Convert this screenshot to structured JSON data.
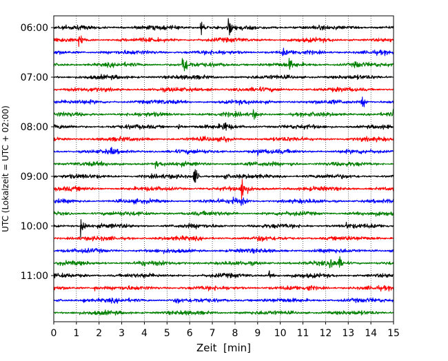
{
  "chart_data": {
    "type": "line",
    "title": "",
    "xlabel": "Zeit  [min]",
    "ylabel": "UTC (Lokalzeit = UTC + 02:00)",
    "xlim": [
      0,
      15
    ],
    "x_ticks": [
      "0",
      "1",
      "2",
      "3",
      "4",
      "5",
      "6",
      "7",
      "8",
      "9",
      "10",
      "11",
      "12",
      "13",
      "14",
      "15"
    ],
    "y_tick_labels": [
      {
        "row": 0,
        "label": "06:00"
      },
      {
        "row": 4,
        "label": "07:00"
      },
      {
        "row": 8,
        "label": "08:00"
      },
      {
        "row": 12,
        "label": "09:00"
      },
      {
        "row": 16,
        "label": "10:00"
      },
      {
        "row": 20,
        "label": "11:00"
      }
    ],
    "row_minutes": 15,
    "grid": "vertical dotted at each minute",
    "colors": [
      "#000000",
      "#ff0000",
      "#0000ff",
      "#008000"
    ],
    "traces": [
      {
        "row": 0,
        "start": "06:00",
        "color": "#000000",
        "events": [
          {
            "t": 6.5,
            "amp": 1.4
          },
          {
            "t": 7.7,
            "amp": 1.3
          }
        ]
      },
      {
        "row": 1,
        "start": "06:15",
        "color": "#ff0000",
        "events": [
          {
            "t": 1.1,
            "amp": 1.0
          }
        ]
      },
      {
        "row": 2,
        "start": "06:30",
        "color": "#0000ff",
        "events": [
          {
            "t": 10.1,
            "amp": 0.5
          }
        ]
      },
      {
        "row": 3,
        "start": "06:45",
        "color": "#008000",
        "events": [
          {
            "t": 5.7,
            "amp": 2.2
          },
          {
            "t": 10.4,
            "amp": 0.7
          },
          {
            "t": 13.3,
            "amp": 0.5
          }
        ]
      },
      {
        "row": 4,
        "start": "07:00",
        "color": "#000000",
        "events": []
      },
      {
        "row": 5,
        "start": "07:15",
        "color": "#ff0000",
        "events": [
          {
            "t": 6.8,
            "amp": 0.4
          }
        ]
      },
      {
        "row": 6,
        "start": "07:30",
        "color": "#0000ff",
        "events": [
          {
            "t": 13.6,
            "amp": 1.0
          }
        ]
      },
      {
        "row": 7,
        "start": "07:45",
        "color": "#008000",
        "events": [
          {
            "t": 8.8,
            "amp": 0.7
          },
          {
            "t": 15.0,
            "amp": 0.7
          }
        ]
      },
      {
        "row": 8,
        "start": "08:00",
        "color": "#000000",
        "events": [
          {
            "t": 5.5,
            "amp": 0.5
          },
          {
            "t": 7.5,
            "amp": 1.0
          }
        ]
      },
      {
        "row": 9,
        "start": "08:15",
        "color": "#ff0000",
        "events": [
          {
            "t": 7.5,
            "amp": 0.6
          }
        ]
      },
      {
        "row": 10,
        "start": "08:30",
        "color": "#0000ff",
        "events": [
          {
            "t": 2.5,
            "amp": 0.4
          },
          {
            "t": 9.0,
            "amp": 0.4
          }
        ]
      },
      {
        "row": 11,
        "start": "08:45",
        "color": "#008000",
        "events": [
          {
            "t": 4.5,
            "amp": 0.4
          },
          {
            "t": 10.5,
            "amp": 0.4
          }
        ]
      },
      {
        "row": 12,
        "start": "09:00",
        "color": "#000000",
        "events": [
          {
            "t": 6.2,
            "amp": 1.5
          },
          {
            "t": 7.5,
            "amp": 0.5
          }
        ]
      },
      {
        "row": 13,
        "start": "09:15",
        "color": "#ff0000",
        "events": [
          {
            "t": 8.3,
            "amp": 2.2
          }
        ]
      },
      {
        "row": 14,
        "start": "09:30",
        "color": "#0000ff",
        "events": [
          {
            "t": 7.9,
            "amp": 0.6
          },
          {
            "t": 8.3,
            "amp": 0.6
          }
        ]
      },
      {
        "row": 15,
        "start": "09:45",
        "color": "#008000",
        "events": []
      },
      {
        "row": 16,
        "start": "10:00",
        "color": "#000000",
        "events": [
          {
            "t": 1.2,
            "amp": 2.0
          },
          {
            "t": 12.9,
            "amp": 0.4
          }
        ]
      },
      {
        "row": 17,
        "start": "10:15",
        "color": "#ff0000",
        "events": [
          {
            "t": 9.1,
            "amp": 0.4
          }
        ]
      },
      {
        "row": 18,
        "start": "10:30",
        "color": "#0000ff",
        "events": []
      },
      {
        "row": 19,
        "start": "10:45",
        "color": "#008000",
        "events": [
          {
            "t": 3.8,
            "amp": 0.6
          },
          {
            "t": 12.2,
            "amp": 1.0
          },
          {
            "t": 12.6,
            "amp": 0.8
          }
        ]
      },
      {
        "row": 20,
        "start": "11:00",
        "color": "#000000",
        "events": [
          {
            "t": 9.5,
            "amp": 0.6
          }
        ]
      },
      {
        "row": 21,
        "start": "11:15",
        "color": "#ff0000",
        "events": [
          {
            "t": 1.8,
            "amp": 0.4
          },
          {
            "t": 11.2,
            "amp": 0.4
          }
        ]
      },
      {
        "row": 22,
        "start": "11:30",
        "color": "#0000ff",
        "events": [
          {
            "t": 1.3,
            "amp": 0.4
          },
          {
            "t": 5.4,
            "amp": 0.6
          }
        ]
      },
      {
        "row": 23,
        "start": "11:45",
        "color": "#008000",
        "events": []
      }
    ]
  }
}
